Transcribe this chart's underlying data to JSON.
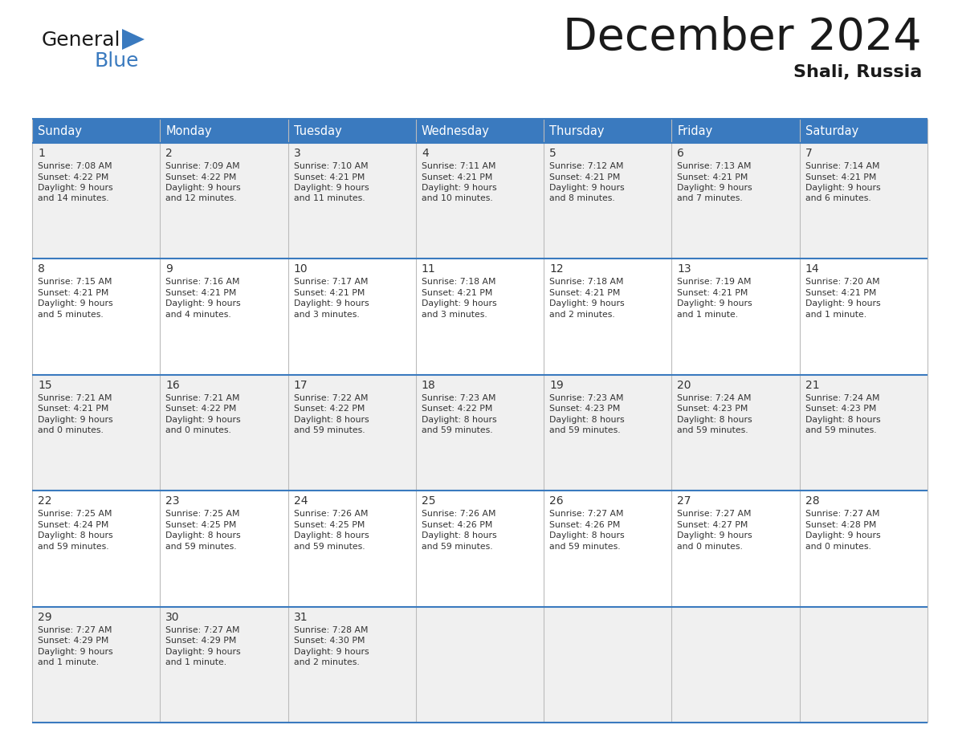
{
  "title": "December 2024",
  "subtitle": "Shali, Russia",
  "header_bg_color": "#3a7abf",
  "header_text_color": "#ffffff",
  "cell_bg_color": "#f0f0f0",
  "border_color": "#3a7abf",
  "text_color": "#333333",
  "day_headers": [
    "Sunday",
    "Monday",
    "Tuesday",
    "Wednesday",
    "Thursday",
    "Friday",
    "Saturday"
  ],
  "calendar_data": [
    [
      {
        "day": "1",
        "sunrise": "7:08 AM",
        "sunset": "4:22 PM",
        "daylight_line1": "Daylight: 9 hours",
        "daylight_line2": "and 14 minutes."
      },
      {
        "day": "2",
        "sunrise": "7:09 AM",
        "sunset": "4:22 PM",
        "daylight_line1": "Daylight: 9 hours",
        "daylight_line2": "and 12 minutes."
      },
      {
        "day": "3",
        "sunrise": "7:10 AM",
        "sunset": "4:21 PM",
        "daylight_line1": "Daylight: 9 hours",
        "daylight_line2": "and 11 minutes."
      },
      {
        "day": "4",
        "sunrise": "7:11 AM",
        "sunset": "4:21 PM",
        "daylight_line1": "Daylight: 9 hours",
        "daylight_line2": "and 10 minutes."
      },
      {
        "day": "5",
        "sunrise": "7:12 AM",
        "sunset": "4:21 PM",
        "daylight_line1": "Daylight: 9 hours",
        "daylight_line2": "and 8 minutes."
      },
      {
        "day": "6",
        "sunrise": "7:13 AM",
        "sunset": "4:21 PM",
        "daylight_line1": "Daylight: 9 hours",
        "daylight_line2": "and 7 minutes."
      },
      {
        "day": "7",
        "sunrise": "7:14 AM",
        "sunset": "4:21 PM",
        "daylight_line1": "Daylight: 9 hours",
        "daylight_line2": "and 6 minutes."
      }
    ],
    [
      {
        "day": "8",
        "sunrise": "7:15 AM",
        "sunset": "4:21 PM",
        "daylight_line1": "Daylight: 9 hours",
        "daylight_line2": "and 5 minutes."
      },
      {
        "day": "9",
        "sunrise": "7:16 AM",
        "sunset": "4:21 PM",
        "daylight_line1": "Daylight: 9 hours",
        "daylight_line2": "and 4 minutes."
      },
      {
        "day": "10",
        "sunrise": "7:17 AM",
        "sunset": "4:21 PM",
        "daylight_line1": "Daylight: 9 hours",
        "daylight_line2": "and 3 minutes."
      },
      {
        "day": "11",
        "sunrise": "7:18 AM",
        "sunset": "4:21 PM",
        "daylight_line1": "Daylight: 9 hours",
        "daylight_line2": "and 3 minutes."
      },
      {
        "day": "12",
        "sunrise": "7:18 AM",
        "sunset": "4:21 PM",
        "daylight_line1": "Daylight: 9 hours",
        "daylight_line2": "and 2 minutes."
      },
      {
        "day": "13",
        "sunrise": "7:19 AM",
        "sunset": "4:21 PM",
        "daylight_line1": "Daylight: 9 hours",
        "daylight_line2": "and 1 minute."
      },
      {
        "day": "14",
        "sunrise": "7:20 AM",
        "sunset": "4:21 PM",
        "daylight_line1": "Daylight: 9 hours",
        "daylight_line2": "and 1 minute."
      }
    ],
    [
      {
        "day": "15",
        "sunrise": "7:21 AM",
        "sunset": "4:21 PM",
        "daylight_line1": "Daylight: 9 hours",
        "daylight_line2": "and 0 minutes."
      },
      {
        "day": "16",
        "sunrise": "7:21 AM",
        "sunset": "4:22 PM",
        "daylight_line1": "Daylight: 9 hours",
        "daylight_line2": "and 0 minutes."
      },
      {
        "day": "17",
        "sunrise": "7:22 AM",
        "sunset": "4:22 PM",
        "daylight_line1": "Daylight: 8 hours",
        "daylight_line2": "and 59 minutes."
      },
      {
        "day": "18",
        "sunrise": "7:23 AM",
        "sunset": "4:22 PM",
        "daylight_line1": "Daylight: 8 hours",
        "daylight_line2": "and 59 minutes."
      },
      {
        "day": "19",
        "sunrise": "7:23 AM",
        "sunset": "4:23 PM",
        "daylight_line1": "Daylight: 8 hours",
        "daylight_line2": "and 59 minutes."
      },
      {
        "day": "20",
        "sunrise": "7:24 AM",
        "sunset": "4:23 PM",
        "daylight_line1": "Daylight: 8 hours",
        "daylight_line2": "and 59 minutes."
      },
      {
        "day": "21",
        "sunrise": "7:24 AM",
        "sunset": "4:23 PM",
        "daylight_line1": "Daylight: 8 hours",
        "daylight_line2": "and 59 minutes."
      }
    ],
    [
      {
        "day": "22",
        "sunrise": "7:25 AM",
        "sunset": "4:24 PM",
        "daylight_line1": "Daylight: 8 hours",
        "daylight_line2": "and 59 minutes."
      },
      {
        "day": "23",
        "sunrise": "7:25 AM",
        "sunset": "4:25 PM",
        "daylight_line1": "Daylight: 8 hours",
        "daylight_line2": "and 59 minutes."
      },
      {
        "day": "24",
        "sunrise": "7:26 AM",
        "sunset": "4:25 PM",
        "daylight_line1": "Daylight: 8 hours",
        "daylight_line2": "and 59 minutes."
      },
      {
        "day": "25",
        "sunrise": "7:26 AM",
        "sunset": "4:26 PM",
        "daylight_line1": "Daylight: 8 hours",
        "daylight_line2": "and 59 minutes."
      },
      {
        "day": "26",
        "sunrise": "7:27 AM",
        "sunset": "4:26 PM",
        "daylight_line1": "Daylight: 8 hours",
        "daylight_line2": "and 59 minutes."
      },
      {
        "day": "27",
        "sunrise": "7:27 AM",
        "sunset": "4:27 PM",
        "daylight_line1": "Daylight: 9 hours",
        "daylight_line2": "and 0 minutes."
      },
      {
        "day": "28",
        "sunrise": "7:27 AM",
        "sunset": "4:28 PM",
        "daylight_line1": "Daylight: 9 hours",
        "daylight_line2": "and 0 minutes."
      }
    ],
    [
      {
        "day": "29",
        "sunrise": "7:27 AM",
        "sunset": "4:29 PM",
        "daylight_line1": "Daylight: 9 hours",
        "daylight_line2": "and 1 minute."
      },
      {
        "day": "30",
        "sunrise": "7:27 AM",
        "sunset": "4:29 PM",
        "daylight_line1": "Daylight: 9 hours",
        "daylight_line2": "and 1 minute."
      },
      {
        "day": "31",
        "sunrise": "7:28 AM",
        "sunset": "4:30 PM",
        "daylight_line1": "Daylight: 9 hours",
        "daylight_line2": "and 2 minutes."
      },
      null,
      null,
      null,
      null
    ]
  ]
}
